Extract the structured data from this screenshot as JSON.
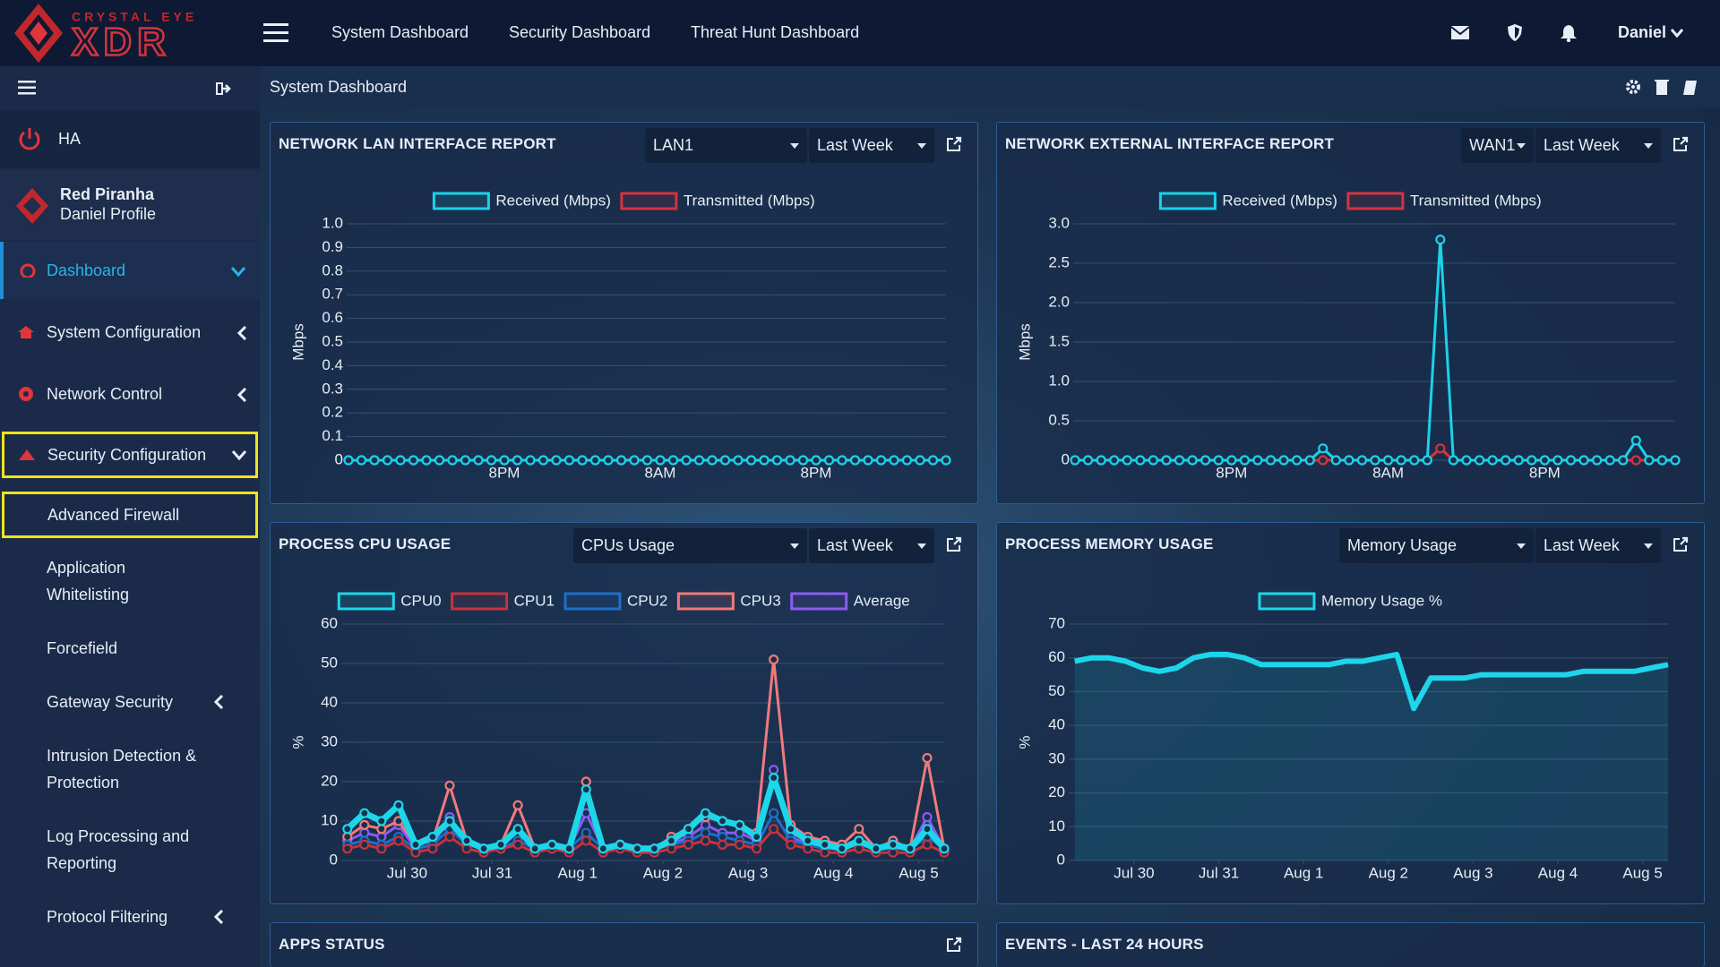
{
  "header": {
    "brand": "CRYSTAL EYE",
    "product": "XDR",
    "nav": [
      "System Dashboard",
      "Security Dashboard",
      "Threat Hunt Dashboard"
    ],
    "user": "Daniel"
  },
  "sidebar": {
    "ha": "HA",
    "profile": {
      "name": "Red Piranha",
      "subtitle": "Daniel Profile"
    },
    "menu": [
      "Dashboard",
      "System Configuration",
      "Network Control",
      "Security Configuration"
    ],
    "submenu": [
      "Advanced Firewall",
      "Application Whitelisting",
      "Forcefield",
      "Gateway Security",
      "Intrusion Detection & Protection",
      "Log Processing and Reporting",
      "Protocol Filtering"
    ]
  },
  "breadcrumb": "System Dashboard",
  "panels": [
    {
      "title": "NETWORK LAN INTERFACE REPORT",
      "selects": [
        "LAN1",
        "Last Week"
      ]
    },
    {
      "title": "NETWORK EXTERNAL INTERFACE REPORT",
      "selects": [
        "WAN1",
        "Last Week"
      ]
    },
    {
      "title": "PROCESS CPU USAGE",
      "selects": [
        "CPUs Usage",
        "Last Week"
      ]
    },
    {
      "title": "PROCESS MEMORY USAGE",
      "selects": [
        "Memory Usage",
        "Last Week"
      ]
    },
    {
      "title": "APPS STATUS"
    },
    {
      "title": "EVENTS - LAST 24 HOURS"
    }
  ],
  "chart_data": [
    {
      "type": "line",
      "ylabel": "Mbps",
      "grid": true,
      "markers": true,
      "x": [
        0,
        1,
        2,
        3,
        4,
        5,
        6,
        7,
        8,
        9,
        10,
        11,
        12,
        13,
        14,
        15,
        16,
        17,
        18,
        19,
        20,
        21,
        22,
        23,
        24,
        25,
        26,
        27,
        28,
        29,
        30,
        31,
        32,
        33,
        34,
        35,
        36,
        37,
        38,
        39,
        40,
        41,
        42,
        43,
        44,
        45,
        46
      ],
      "xlim": [
        0,
        46
      ],
      "xticks": [
        {
          "value": 12,
          "label": "8PM"
        },
        {
          "value": 24,
          "label": "8AM"
        },
        {
          "value": 36,
          "label": "8PM"
        }
      ],
      "ylim": [
        0,
        1
      ],
      "yticks": [
        0,
        0.1,
        0.2,
        0.3,
        0.4,
        0.5,
        0.6,
        0.7,
        0.8,
        0.9,
        {
          "value": 1,
          "label": "1.0"
        }
      ],
      "series": [
        {
          "name": "Received (Mbps)",
          "color": "#19d3ea",
          "values": [
            0,
            0,
            0,
            0,
            0,
            0,
            0,
            0,
            0,
            0,
            0,
            0,
            0,
            0,
            0,
            0,
            0,
            0,
            0,
            0,
            0,
            0,
            0,
            0,
            0,
            0,
            0,
            0,
            0,
            0,
            0,
            0,
            0,
            0,
            0,
            0,
            0,
            0,
            0,
            0,
            0,
            0,
            0,
            0,
            0,
            0,
            0
          ]
        },
        {
          "name": "Transmitted (Mbps)",
          "color": "#d6333d",
          "values": [
            0,
            0,
            0,
            0,
            0,
            0,
            0,
            0,
            0,
            0,
            0,
            0,
            0,
            0,
            0,
            0,
            0,
            0,
            0,
            0,
            0,
            0,
            0,
            0,
            0,
            0,
            0,
            0,
            0,
            0,
            0,
            0,
            0,
            0,
            0,
            0,
            0,
            0,
            0,
            0,
            0,
            0,
            0,
            0,
            0,
            0,
            0
          ]
        }
      ]
    },
    {
      "type": "line",
      "ylabel": "Mbps",
      "grid": true,
      "markers": true,
      "x": [
        0,
        1,
        2,
        3,
        4,
        5,
        6,
        7,
        8,
        9,
        10,
        11,
        12,
        13,
        14,
        15,
        16,
        17,
        18,
        19,
        20,
        21,
        22,
        23,
        24,
        25,
        26,
        27,
        28,
        29,
        30,
        31,
        32,
        33,
        34,
        35,
        36,
        37,
        38,
        39,
        40,
        41,
        42,
        43,
        44,
        45,
        46
      ],
      "xlim": [
        0,
        46
      ],
      "xticks": [
        {
          "value": 12,
          "label": "8PM"
        },
        {
          "value": 24,
          "label": "8AM"
        },
        {
          "value": 36,
          "label": "8PM"
        }
      ],
      "ylim": [
        0,
        3
      ],
      "yticks": [
        0,
        0.5,
        {
          "value": 1,
          "label": "1.0"
        },
        1.5,
        {
          "value": 2,
          "label": "2.0"
        },
        2.5,
        {
          "value": 3,
          "label": "3.0"
        }
      ],
      "series": [
        {
          "name": "Received (Mbps)",
          "color": "#19d3ea",
          "values": [
            0,
            0,
            0,
            0,
            0,
            0,
            0,
            0,
            0,
            0,
            0,
            0,
            0,
            0,
            0,
            0,
            0,
            0,
            0,
            0.15,
            0,
            0,
            0,
            0,
            0,
            0,
            0,
            0,
            2.8,
            0,
            0,
            0,
            0,
            0,
            0,
            0,
            0,
            0,
            0,
            0,
            0,
            0,
            0,
            0.25,
            0,
            0,
            0
          ]
        },
        {
          "name": "Transmitted (Mbps)",
          "color": "#d6333d",
          "values": [
            0,
            0,
            0,
            0,
            0,
            0,
            0,
            0,
            0,
            0,
            0,
            0,
            0,
            0,
            0,
            0,
            0,
            0,
            0,
            0,
            0,
            0,
            0,
            0,
            0,
            0,
            0,
            0,
            0.15,
            0,
            0,
            0,
            0,
            0,
            0,
            0,
            0,
            0,
            0,
            0,
            0,
            0,
            0,
            0,
            0,
            0,
            0
          ]
        }
      ]
    },
    {
      "type": "line",
      "ylabel": "%",
      "grid": true,
      "markers": true,
      "x": [
        -0.7,
        -0.5,
        -0.3,
        -0.1,
        0.1,
        0.3,
        0.5,
        0.7,
        0.9,
        1.1,
        1.3,
        1.5,
        1.7,
        1.9,
        2.1,
        2.3,
        2.5,
        2.7,
        2.9,
        3.1,
        3.3,
        3.5,
        3.7,
        3.9,
        4.1,
        4.3,
        4.5,
        4.7,
        4.9,
        5.1,
        5.3,
        5.5,
        5.7,
        5.9,
        6.1,
        6.3
      ],
      "xlim": [
        -0.75,
        6.3
      ],
      "xticks": [
        {
          "value": 0,
          "label": "Jul 30"
        },
        {
          "value": 1,
          "label": "Jul 31"
        },
        {
          "value": 2,
          "label": "Aug 1"
        },
        {
          "value": 3,
          "label": "Aug 2"
        },
        {
          "value": 4,
          "label": "Aug 3"
        },
        {
          "value": 5,
          "label": "Aug 4"
        },
        {
          "value": 6,
          "label": "Aug 5"
        }
      ],
      "ylim": [
        0,
        60
      ],
      "yticks": [
        0,
        10,
        20,
        30,
        40,
        50,
        60
      ],
      "series": [
        {
          "name": "CPU0",
          "color": "#1dd6ea",
          "values": [
            8,
            12,
            10,
            14,
            4,
            6,
            10,
            5,
            3,
            4,
            8,
            3,
            4,
            3,
            18,
            3,
            4,
            3,
            3,
            5,
            8,
            12,
            10,
            9,
            6,
            21,
            8,
            5,
            4,
            3,
            5,
            3,
            4,
            3,
            8,
            3
          ]
        },
        {
          "name": "CPU1",
          "color": "#c8323c",
          "values": [
            3,
            4,
            3,
            5,
            2,
            3,
            6,
            3,
            2,
            3,
            4,
            2,
            3,
            2,
            5,
            2,
            3,
            2,
            2,
            3,
            4,
            5,
            4,
            4,
            3,
            8,
            4,
            3,
            2,
            2,
            3,
            2,
            2,
            2,
            4,
            2
          ]
        },
        {
          "name": "CPU2",
          "color": "#1f6fc9",
          "values": [
            4,
            5,
            4,
            6,
            3,
            4,
            8,
            4,
            3,
            3,
            5,
            3,
            3,
            3,
            7,
            3,
            3,
            3,
            3,
            4,
            5,
            7,
            6,
            5,
            4,
            12,
            5,
            4,
            3,
            3,
            4,
            3,
            3,
            3,
            6,
            3
          ]
        },
        {
          "name": "CPU3",
          "color": "#f07a7a",
          "values": [
            6,
            9,
            8,
            10,
            4,
            5,
            19,
            5,
            3,
            4,
            14,
            3,
            4,
            3,
            20,
            3,
            4,
            3,
            3,
            6,
            8,
            11,
            10,
            9,
            7,
            51,
            9,
            6,
            5,
            4,
            8,
            3,
            5,
            3,
            26,
            3
          ]
        },
        {
          "name": "Average",
          "color": "#8a5cf0",
          "values": [
            5,
            7,
            6,
            9,
            3,
            4,
            11,
            4,
            3,
            3,
            8,
            3,
            3,
            3,
            12,
            3,
            3,
            3,
            3,
            4,
            6,
            9,
            7,
            7,
            5,
            23,
            6,
            4,
            3,
            3,
            5,
            3,
            3,
            3,
            11,
            3
          ]
        }
      ]
    },
    {
      "type": "line",
      "ylabel": "%",
      "grid": true,
      "markers": false,
      "area": true,
      "x": [
        -0.7,
        -0.5,
        -0.3,
        -0.1,
        0.1,
        0.3,
        0.5,
        0.7,
        0.9,
        1.1,
        1.3,
        1.5,
        1.7,
        1.9,
        2.1,
        2.3,
        2.5,
        2.7,
        2.9,
        3.1,
        3.3,
        3.5,
        3.7,
        3.9,
        4.1,
        4.3,
        4.5,
        4.7,
        4.9,
        5.1,
        5.3,
        5.5,
        5.7,
        5.9,
        6.1,
        6.3
      ],
      "xlim": [
        -0.75,
        6.3
      ],
      "xticks": [
        {
          "value": 0,
          "label": "Jul 30"
        },
        {
          "value": 1,
          "label": "Jul 31"
        },
        {
          "value": 2,
          "label": "Aug 1"
        },
        {
          "value": 3,
          "label": "Aug 2"
        },
        {
          "value": 4,
          "label": "Aug 3"
        },
        {
          "value": 5,
          "label": "Aug 4"
        },
        {
          "value": 6,
          "label": "Aug 5"
        }
      ],
      "ylim": [
        0,
        70
      ],
      "yticks": [
        0,
        10,
        20,
        30,
        40,
        50,
        60,
        70
      ],
      "series": [
        {
          "name": "Memory Usage %",
          "color": "#1dd6ea",
          "values": [
            59,
            60,
            60,
            59,
            57,
            56,
            57,
            60,
            61,
            61,
            60,
            58,
            58,
            58,
            58,
            58,
            59,
            59,
            60,
            61,
            45,
            54,
            54,
            54,
            55,
            55,
            55,
            55,
            55,
            55,
            56,
            56,
            56,
            56,
            57,
            58
          ]
        }
      ]
    }
  ]
}
